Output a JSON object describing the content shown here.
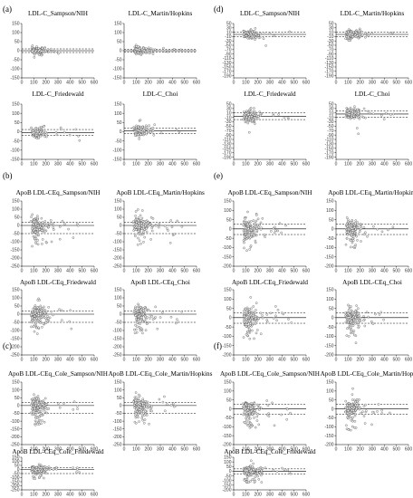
{
  "figure": {
    "width": 456,
    "height": 550,
    "axes": {
      "x_ticks": [
        0,
        100,
        200,
        300,
        400,
        500,
        600
      ],
      "xlim": [
        0,
        600
      ],
      "y_ticks_small": [
        150,
        100,
        50,
        0,
        -50,
        -100,
        -150
      ],
      "ylim_small": [
        -150,
        150
      ],
      "y_ticks_large": [
        150,
        100,
        50,
        0,
        -50,
        -100,
        -150,
        -200,
        -250
      ],
      "ylim_large": [
        -250,
        150
      ],
      "y_ticks_d": [
        50,
        40,
        30,
        20,
        10,
        0,
        -10,
        -20,
        -30,
        -40,
        -50,
        -60,
        -70,
        -80,
        -90,
        -100,
        -110,
        -120,
        -130,
        -140,
        -150,
        -160,
        -170,
        -180,
        -190,
        -200
      ],
      "ylim_d": [
        -200,
        50
      ],
      "y_ticks_ef": [
        150,
        100,
        50,
        0,
        -50,
        -100,
        -150,
        -200
      ],
      "ylim_ef": [
        -200,
        150
      ]
    },
    "panel_labels": [
      "(a)",
      "(b)",
      "(c)",
      "(d)",
      "(e)",
      "(f)"
    ]
  },
  "chart_data": [
    {
      "type": "scatter",
      "panel": "a",
      "title": "LDL-C_Sampson/NIH",
      "lines": [
        0,
        -10,
        10
      ],
      "spread": "low"
    },
    {
      "type": "scatter",
      "panel": "a",
      "title": "LDL-C_Martin/Hopkins",
      "lines": [
        0,
        -8,
        8
      ],
      "spread": "low"
    },
    {
      "type": "scatter",
      "panel": "a",
      "title": "LDL-C_Friedewald",
      "lines": [
        -5,
        -20,
        12
      ],
      "spread": "mid"
    },
    {
      "type": "scatter",
      "panel": "a",
      "title": "LDL-C_Choi",
      "lines": [
        5,
        -10,
        20
      ],
      "spread": "mid"
    },
    {
      "type": "scatter",
      "panel": "b",
      "title": "ApoB LDL-CEq_Sampson/NIH",
      "lines": [
        0,
        -50,
        20
      ],
      "spread": "high"
    },
    {
      "type": "scatter",
      "panel": "b",
      "title": "ApoB LDL-CEq_Martin/Hopkins",
      "lines": [
        0,
        -50,
        20
      ],
      "spread": "high"
    },
    {
      "type": "scatter",
      "panel": "b",
      "title": "ApoB LDL-CEq_Friedewald",
      "lines": [
        0,
        -50,
        20
      ],
      "spread": "high"
    },
    {
      "type": "scatter",
      "panel": "b",
      "title": "ApoB LDL-CEq_Choi",
      "lines": [
        0,
        -50,
        20
      ],
      "spread": "high"
    },
    {
      "type": "scatter",
      "panel": "c",
      "title": "ApoB LDL-CEq_Cole_Sampson/NIH",
      "lines": [
        0,
        -50,
        20
      ],
      "spread": "high"
    },
    {
      "type": "scatter",
      "panel": "c",
      "title": "ApoB LDL-CEq_Cole_Martin/Hopkins",
      "lines": [
        0,
        -50,
        20
      ],
      "spread": "high"
    },
    {
      "type": "scatter",
      "panel": "c",
      "title": "ApoB LDL-CEq_Cole_Friedewald",
      "lines": [
        0,
        -50,
        20
      ],
      "spread": "high"
    },
    {
      "type": "scatter",
      "panel": "d",
      "title": "LDL-C_Sampson/NIH",
      "lines": [
        0,
        -10,
        10
      ],
      "spread": "low"
    },
    {
      "type": "scatter",
      "panel": "d",
      "title": "LDL-C_Martin/Hopkins",
      "lines": [
        0,
        -10,
        10
      ],
      "spread": "low"
    },
    {
      "type": "scatter",
      "panel": "d",
      "title": "LDL-C_Friedewald",
      "lines": [
        -5,
        -20,
        10
      ],
      "spread": "mid"
    },
    {
      "type": "scatter",
      "panel": "d",
      "title": "LDL-C_Choi",
      "lines": [
        5,
        -10,
        20
      ],
      "spread": "mid"
    },
    {
      "type": "scatter",
      "panel": "e",
      "title": "ApoB LDL-CEq_Sampson/NIH",
      "lines": [
        0,
        -30,
        25
      ],
      "spread": "high"
    },
    {
      "type": "scatter",
      "panel": "e",
      "title": "ApoB LDL-CEq_Martin/Hopkins",
      "lines": [
        0,
        -30,
        25
      ],
      "spread": "high"
    },
    {
      "type": "scatter",
      "panel": "e",
      "title": "ApoB LDL-CEq_Friedewald",
      "lines": [
        0,
        -30,
        25
      ],
      "spread": "high"
    },
    {
      "type": "scatter",
      "panel": "e",
      "title": "ApoB LDL-CEq_Choi",
      "lines": [
        0,
        -30,
        25
      ],
      "spread": "high"
    },
    {
      "type": "scatter",
      "panel": "f",
      "title": "ApoB LDL-CEq_Cole_Sampson/NIH",
      "lines": [
        0,
        -30,
        25
      ],
      "spread": "high"
    },
    {
      "type": "scatter",
      "panel": "f",
      "title": "ApoB LDL-CEq_Cole_Martin/Hopkins",
      "lines": [
        0,
        -30,
        25
      ],
      "spread": "high"
    },
    {
      "type": "scatter",
      "panel": "f",
      "title": "ApoB LDL-CEq_Cole_Friedewald",
      "lines": [
        0,
        -30,
        25
      ],
      "spread": "high"
    }
  ]
}
